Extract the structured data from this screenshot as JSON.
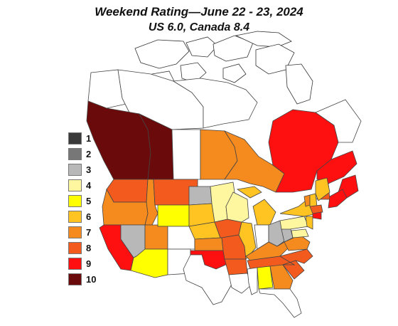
{
  "title": "Weekend Rating—June 22 - 23, 2024",
  "subtitle": "US 6.0, Canada 8.4",
  "legend": [
    {
      "label": "1",
      "color": "#3a3a3a",
      "text_color": "#ffffff"
    },
    {
      "label": "2",
      "color": "#777777",
      "text_color": "#ffffff"
    },
    {
      "label": "3",
      "color": "#b8b8b8",
      "text_color": "#ffffff"
    },
    {
      "label": "4",
      "color": "#fff7a0",
      "text_color": "#111111"
    },
    {
      "label": "5",
      "color": "#ffff00",
      "text_color": "#111111"
    },
    {
      "label": "6",
      "color": "#ffc322",
      "text_color": "#ffffff"
    },
    {
      "label": "7",
      "color": "#f58a1e",
      "text_color": "#ffffff"
    },
    {
      "label": "8",
      "color": "#f25a1e",
      "text_color": "#ffffff"
    },
    {
      "label": "9",
      "color": "#ff1010",
      "text_color": "#ffffff"
    },
    {
      "label": "10",
      "color": "#6b0a0a",
      "text_color": "#ffffff"
    }
  ],
  "regions": [
    {
      "name": "yukon",
      "rating": null
    },
    {
      "name": "british-columbia",
      "rating": 10
    },
    {
      "name": "alberta",
      "rating": 10
    },
    {
      "name": "northwest-territories",
      "rating": null
    },
    {
      "name": "nunavut",
      "rating": null
    },
    {
      "name": "saskatchewan",
      "rating": null
    },
    {
      "name": "manitoba",
      "rating": 7
    },
    {
      "name": "ontario",
      "rating": 7
    },
    {
      "name": "quebec",
      "rating": 9
    },
    {
      "name": "newfoundland-labrador",
      "rating": null
    },
    {
      "name": "newfoundland-island",
      "rating": 9
    },
    {
      "name": "new-brunswick",
      "rating": 8
    },
    {
      "name": "nova-scotia",
      "rating": 9
    },
    {
      "name": "washington",
      "rating": 8
    },
    {
      "name": "oregon",
      "rating": 7
    },
    {
      "name": "california",
      "rating": 9
    },
    {
      "name": "nevada",
      "rating": 3
    },
    {
      "name": "idaho",
      "rating": 7
    },
    {
      "name": "montana",
      "rating": 8
    },
    {
      "name": "wyoming",
      "rating": 5
    },
    {
      "name": "utah",
      "rating": 7
    },
    {
      "name": "arizona",
      "rating": 5
    },
    {
      "name": "colorado",
      "rating": null
    },
    {
      "name": "new-mexico",
      "rating": null
    },
    {
      "name": "north-dakota",
      "rating": 3
    },
    {
      "name": "south-dakota",
      "rating": 6
    },
    {
      "name": "nebraska",
      "rating": 6
    },
    {
      "name": "kansas",
      "rating": 7
    },
    {
      "name": "oklahoma",
      "rating": 9
    },
    {
      "name": "texas",
      "rating": null
    },
    {
      "name": "minnesota",
      "rating": 4
    },
    {
      "name": "iowa",
      "rating": 8
    },
    {
      "name": "missouri",
      "rating": 8
    },
    {
      "name": "arkansas",
      "rating": 8
    },
    {
      "name": "louisiana",
      "rating": null
    },
    {
      "name": "wisconsin",
      "rating": 4
    },
    {
      "name": "illinois",
      "rating": 6
    },
    {
      "name": "michigan",
      "rating": 6
    },
    {
      "name": "indiana",
      "rating": null
    },
    {
      "name": "ohio",
      "rating": 3
    },
    {
      "name": "kentucky",
      "rating": 7
    },
    {
      "name": "tennessee",
      "rating": 8
    },
    {
      "name": "mississippi",
      "rating": null
    },
    {
      "name": "alabama",
      "rating": 5
    },
    {
      "name": "georgia",
      "rating": 7
    },
    {
      "name": "florida",
      "rating": null
    },
    {
      "name": "south-carolina",
      "rating": 8
    },
    {
      "name": "north-carolina",
      "rating": 8
    },
    {
      "name": "virginia",
      "rating": 7
    },
    {
      "name": "west-virginia",
      "rating": 3
    },
    {
      "name": "pennsylvania",
      "rating": 4
    },
    {
      "name": "new-york",
      "rating": 6
    },
    {
      "name": "vermont",
      "rating": 7
    },
    {
      "name": "new-hampshire",
      "rating": 6
    },
    {
      "name": "maine",
      "rating": 6
    },
    {
      "name": "massachusetts",
      "rating": 8
    },
    {
      "name": "connecticut",
      "rating": 9
    },
    {
      "name": "new-jersey",
      "rating": 6
    },
    {
      "name": "maryland",
      "rating": 4
    }
  ]
}
